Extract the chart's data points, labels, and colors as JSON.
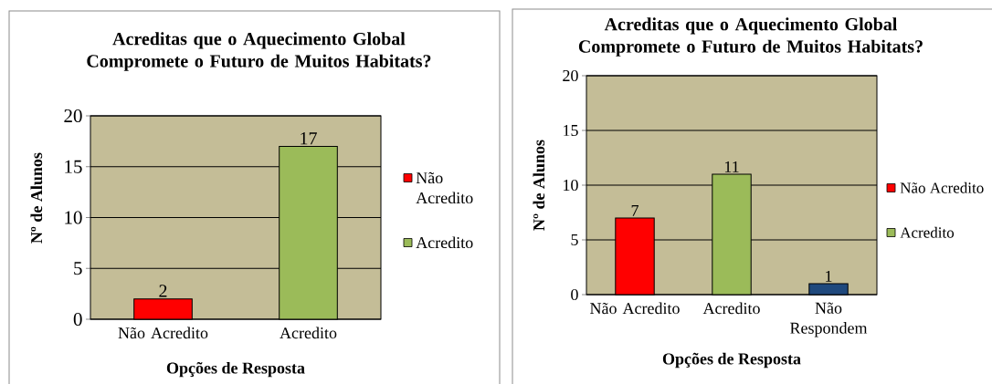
{
  "chart_data": [
    {
      "type": "bar",
      "title": "Acreditas que o Aquecimento Global Compromete o Futuro de Muitos Habitats?",
      "xlabel": "Opções de Resposta",
      "ylabel": "Nº de Alunos",
      "categories": [
        "Não Acredito",
        "Acredito"
      ],
      "series": [
        {
          "name": "Não Acredito",
          "color": "#ff0000",
          "values": [
            2,
            null
          ]
        },
        {
          "name": "Acredito",
          "color": "#9bbb59",
          "values": [
            null,
            17
          ]
        }
      ],
      "ylim": [
        0,
        20
      ],
      "yticks": [
        0,
        5,
        10,
        15,
        20
      ],
      "grid": "y",
      "legend": "right",
      "data_labels": true
    },
    {
      "type": "bar",
      "title": "Acreditas que o Aquecimento Global Compromete o Futuro de Muitos Habitats?",
      "xlabel": "Opções de Resposta",
      "ylabel": "Nº de Alunos",
      "categories": [
        "Não Acredito",
        "Acredito",
        "Não Respondem"
      ],
      "series": [
        {
          "name": "Não Acredito",
          "color": "#ff0000",
          "values": [
            7,
            null,
            null
          ]
        },
        {
          "name": "Acredito",
          "color": "#9bbb59",
          "values": [
            null,
            11,
            null
          ]
        },
        {
          "color": "#1f497d",
          "values": [
            null,
            null,
            1
          ]
        }
      ],
      "ylim": [
        0,
        20
      ],
      "yticks": [
        0,
        5,
        10,
        15,
        20
      ],
      "grid": "y",
      "legend": "right",
      "data_labels": true
    }
  ]
}
